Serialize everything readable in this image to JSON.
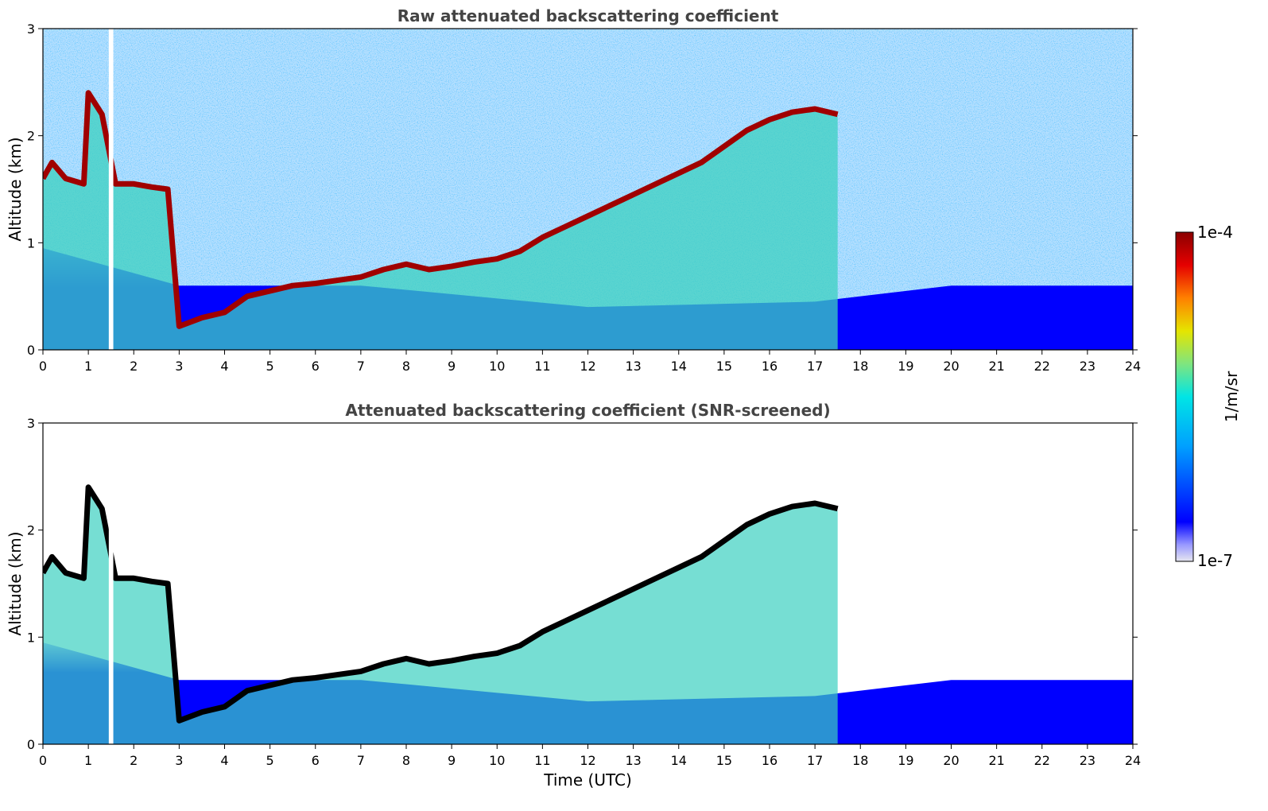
{
  "colors": {
    "colormap": [
      "#e6e6f0",
      "#0000ff",
      "#00a0ff",
      "#00e5e5",
      "#7fe57f",
      "#e5e500",
      "#ff8000",
      "#e50000",
      "#8b0000"
    ],
    "cloud_base_screened": "#000000",
    "background": "#ffffff"
  },
  "chart_data": [
    {
      "type": "heatmap",
      "title": "Raw attenuated backscattering coefficient",
      "xlabel": "",
      "ylabel": "Altitude (km)",
      "xlim": [
        0,
        24
      ],
      "ylim": [
        0,
        3
      ],
      "xticks": [
        "0",
        "1",
        "2",
        "3",
        "4",
        "5",
        "6",
        "7",
        "8",
        "9",
        "10",
        "11",
        "12",
        "13",
        "14",
        "15",
        "16",
        "17",
        "18",
        "19",
        "20",
        "21",
        "22",
        "23",
        "24"
      ],
      "yticks": [
        "0",
        "1",
        "2",
        "3"
      ],
      "data_gap_hours": [
        1.45,
        1.55
      ],
      "cloud_layer": {
        "time_h": [
          0.0,
          0.2,
          0.5,
          0.9,
          1.0,
          1.3,
          1.6,
          2.0,
          2.4,
          2.75,
          3.0,
          3.5,
          4.0,
          4.5,
          5.0,
          5.5,
          6.0,
          6.5,
          7.0,
          7.5,
          8.0,
          8.5,
          9.0,
          9.5,
          10.0,
          10.5,
          11.0,
          11.5,
          12.0,
          12.5,
          13.0,
          13.5,
          14.0,
          14.5,
          15.0,
          15.5,
          16.0,
          16.5,
          17.0,
          17.5
        ],
        "altitude_km": [
          1.6,
          1.75,
          1.6,
          1.55,
          2.4,
          2.2,
          1.55,
          1.55,
          1.52,
          1.5,
          0.22,
          0.3,
          0.35,
          0.5,
          0.55,
          0.6,
          0.62,
          0.65,
          0.68,
          0.75,
          0.8,
          0.75,
          0.78,
          0.82,
          0.85,
          0.92,
          1.05,
          1.15,
          1.25,
          1.35,
          1.45,
          1.55,
          1.65,
          1.75,
          1.9,
          2.05,
          2.15,
          2.22,
          2.25,
          2.2
        ]
      },
      "near_surface_layer_top_km": [
        {
          "time_h": 0,
          "altitude_km": 0.95
        },
        {
          "time_h": 3,
          "altitude_km": 0.6
        },
        {
          "time_h": 7,
          "altitude_km": 0.6
        },
        {
          "time_h": 12,
          "altitude_km": 0.4
        },
        {
          "time_h": 17,
          "altitude_km": 0.45
        },
        {
          "time_h": 20,
          "altitude_km": 0.6
        },
        {
          "time_h": 24,
          "altitude_km": 0.6
        }
      ]
    },
    {
      "type": "heatmap",
      "title": "Attenuated backscattering coefficient (SNR-screened)",
      "xlabel": "Time (UTC)",
      "ylabel": "Altitude (km)",
      "xlim": [
        0,
        24
      ],
      "ylim": [
        0,
        3
      ],
      "xticks": [
        "0",
        "1",
        "2",
        "3",
        "4",
        "5",
        "6",
        "7",
        "8",
        "9",
        "10",
        "11",
        "12",
        "13",
        "14",
        "15",
        "16",
        "17",
        "18",
        "19",
        "20",
        "21",
        "22",
        "23",
        "24"
      ],
      "yticks": [
        "0",
        "1",
        "2",
        "3"
      ],
      "data_gap_hours": [
        1.45,
        1.55
      ],
      "cloud_base_marked_black": true
    }
  ],
  "colorbar": {
    "label": "1/m/sr",
    "max_label": "1e-4",
    "min_label": "1e-7",
    "vmin": 1e-07,
    "vmax": 0.0001,
    "scale": "log"
  }
}
